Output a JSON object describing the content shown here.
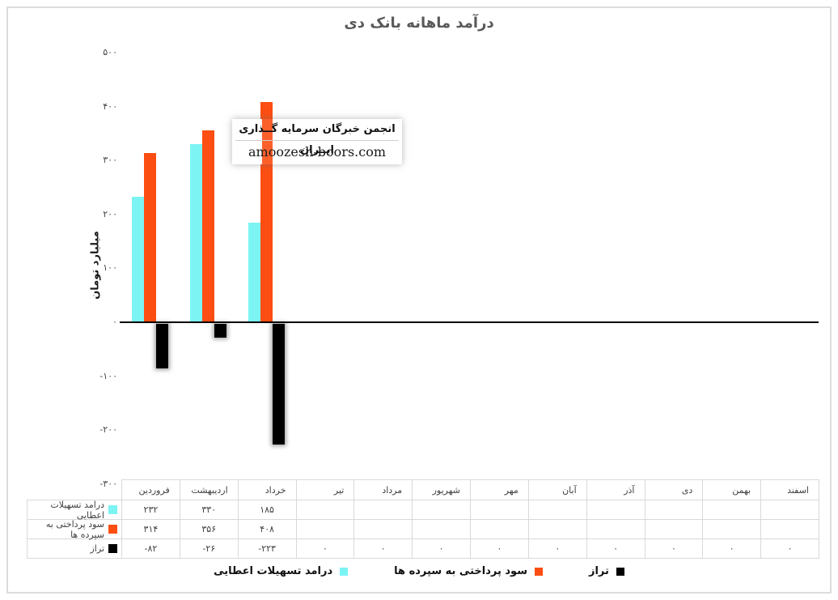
{
  "title": "درآمد ماهانه بانک دی",
  "y_axis": {
    "title": "میلیارد تومان",
    "ticks": [
      {
        "label": "۵۰۰",
        "value": 500
      },
      {
        "label": "۴۰۰",
        "value": 400
      },
      {
        "label": "۳۰۰",
        "value": 300
      },
      {
        "label": "۲۰۰",
        "value": 200
      },
      {
        "label": "۱۰۰",
        "value": 100
      },
      {
        "label": "۰",
        "value": 0
      },
      {
        "label": "-۱۰۰",
        "value": -100
      },
      {
        "label": "-۲۰۰",
        "value": -200
      },
      {
        "label": "-۳۰۰",
        "value": -300
      }
    ]
  },
  "watermark": {
    "line1": "انجمن خبرگان سرمایه گــذاری ایــران",
    "line2": "amoozesh-boors.com"
  },
  "colors": {
    "cyan": "#7CF4F4",
    "orange": "#FC4E12",
    "black": "#000000",
    "title_gray": "#595959",
    "border_gray": "#D9D9D9",
    "text_gray": "#404040"
  },
  "chart_data": {
    "type": "bar",
    "title": "درآمد ماهانه بانک دی",
    "ylabel": "میلیارد تومان",
    "xlabel": "",
    "ylim": [
      -300,
      500
    ],
    "grid": false,
    "legend_position": "bottom",
    "categories": [
      "فروردین",
      "اردیبهشت",
      "خرداد",
      "تیر",
      "مرداد",
      "شهریور",
      "مهر",
      "آبان",
      "آذر",
      "دی",
      "بهمن",
      "اسفند"
    ],
    "series": [
      {
        "name": "درامد تسهیلات اعطایی",
        "color_key": "cyan",
        "values": [
          232,
          330,
          185,
          null,
          null,
          null,
          null,
          null,
          null,
          null,
          null,
          null
        ],
        "display": [
          "۲۳۲",
          "۳۳۰",
          "۱۸۵",
          "",
          "",
          "",
          "",
          "",
          "",
          "",
          "",
          ""
        ]
      },
      {
        "name": "سود پرداختی به سپرده ها",
        "color_key": "orange",
        "values": [
          314,
          356,
          408,
          null,
          null,
          null,
          null,
          null,
          null,
          null,
          null,
          null
        ],
        "display": [
          "۳۱۴",
          "۳۵۶",
          "۴۰۸",
          "",
          "",
          "",
          "",
          "",
          "",
          "",
          "",
          ""
        ]
      },
      {
        "name": "تراز",
        "color_key": "black",
        "values": [
          -82,
          -26,
          -223,
          0,
          0,
          0,
          0,
          0,
          0,
          0,
          0,
          0
        ],
        "display": [
          "-۸۲",
          "-۲۶",
          "-۲۲۳",
          "۰",
          "۰",
          "۰",
          "۰",
          "۰",
          "۰",
          "۰",
          "۰",
          "۰"
        ]
      }
    ]
  }
}
